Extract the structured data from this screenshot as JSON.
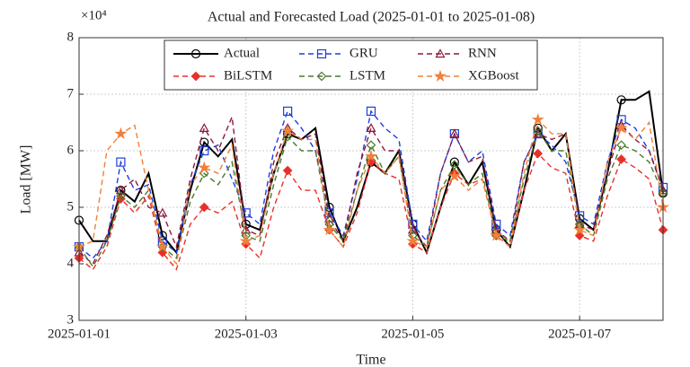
{
  "chart_data": {
    "type": "line",
    "title": "Actual and Forecasted Load (2025-01-01 to 2025-01-08)",
    "ylabel": "Load [MW]",
    "xlabel": "Time",
    "y_exponent_label": "×10⁴",
    "x": [
      0,
      4,
      8,
      12,
      16,
      20,
      24,
      28,
      32,
      36,
      40,
      44,
      48,
      52,
      56,
      60,
      64,
      68,
      72,
      76,
      80,
      84,
      88,
      92,
      96,
      100,
      104,
      108,
      112,
      116,
      120,
      124,
      128,
      132,
      136,
      140,
      144,
      148,
      152,
      156,
      160,
      164,
      168
    ],
    "xlim": [
      0,
      168
    ],
    "xticks": [
      {
        "value": 0,
        "label": "2025-01-01"
      },
      {
        "value": 48,
        "label": "2025-01-03"
      },
      {
        "value": 96,
        "label": "2025-01-05"
      },
      {
        "value": 144,
        "label": "2025-01-07"
      }
    ],
    "ylim": [
      3,
      8
    ],
    "yticks": [
      3,
      4,
      5,
      6,
      7,
      8
    ],
    "grid": true,
    "legend": "top",
    "series": [
      {
        "name": "Actual",
        "color": "#000000",
        "dash": "solid",
        "marker": "circle",
        "values": [
          4.77,
          4.4,
          4.4,
          5.3,
          5.1,
          5.6,
          4.5,
          4.2,
          5.3,
          6.15,
          5.9,
          6.2,
          4.7,
          4.6,
          5.6,
          6.3,
          6.2,
          6.4,
          5.0,
          4.4,
          5.0,
          5.8,
          5.6,
          6.0,
          4.7,
          4.2,
          5.0,
          5.8,
          5.4,
          5.8,
          4.6,
          4.3,
          5.3,
          6.4,
          6.0,
          6.3,
          4.8,
          4.6,
          5.6,
          6.9,
          6.9,
          7.05,
          5.25
        ]
      },
      {
        "name": "GRU",
        "color": "#1f3fdd",
        "dash": "dashed",
        "marker": "square",
        "values": [
          4.3,
          4.1,
          4.4,
          5.8,
          5.3,
          5.4,
          4.4,
          4.2,
          5.4,
          6.0,
          6.1,
          5.5,
          4.9,
          4.7,
          6.0,
          6.7,
          6.4,
          6.0,
          4.9,
          4.5,
          5.5,
          6.7,
          6.4,
          6.2,
          4.7,
          4.4,
          5.6,
          6.3,
          5.8,
          6.0,
          4.7,
          4.5,
          5.8,
          6.3,
          6.1,
          5.8,
          4.85,
          4.7,
          5.8,
          6.55,
          6.4,
          6.0,
          5.35
        ]
      },
      {
        "name": "RNN",
        "color": "#8b1a3a",
        "dash": "dashed",
        "marker": "triangle",
        "values": [
          4.2,
          4.0,
          4.5,
          5.3,
          5.5,
          5.0,
          4.9,
          4.3,
          5.5,
          6.4,
          6.0,
          6.6,
          4.6,
          4.5,
          5.8,
          6.4,
          6.2,
          6.3,
          4.8,
          4.4,
          5.6,
          6.4,
          6.0,
          6.0,
          4.6,
          4.3,
          5.6,
          6.3,
          5.8,
          5.9,
          4.6,
          4.4,
          5.8,
          6.3,
          6.2,
          6.3,
          4.7,
          4.6,
          5.6,
          6.45,
          6.2,
          6.0,
          5.3
        ]
      },
      {
        "name": "BiLSTM",
        "color": "#e8302a",
        "dash": "dashed",
        "marker": "diamond-filled",
        "values": [
          4.1,
          3.9,
          4.3,
          5.15,
          4.9,
          5.2,
          4.2,
          3.9,
          4.7,
          5.0,
          4.9,
          5.1,
          4.35,
          4.1,
          5.0,
          5.65,
          5.3,
          5.3,
          4.6,
          4.3,
          4.9,
          5.8,
          5.6,
          5.5,
          4.35,
          4.2,
          5.0,
          5.6,
          5.4,
          5.5,
          4.5,
          4.3,
          5.3,
          5.95,
          5.7,
          5.6,
          4.5,
          4.4,
          5.2,
          5.85,
          5.7,
          5.5,
          4.6
        ]
      },
      {
        "name": "LSTM",
        "color": "#4a7a2a",
        "dash": "dashed",
        "marker": "diamond",
        "values": [
          4.3,
          3.95,
          4.4,
          5.2,
          5.0,
          5.3,
          4.3,
          4.1,
          5.1,
          5.6,
          5.4,
          5.8,
          4.5,
          4.4,
          5.4,
          6.25,
          6.0,
          6.0,
          4.7,
          4.4,
          5.3,
          6.1,
          5.6,
          5.9,
          4.5,
          4.3,
          5.3,
          5.75,
          5.4,
          5.6,
          4.5,
          4.4,
          5.5,
          6.35,
          6.0,
          6.0,
          4.7,
          4.5,
          5.5,
          6.1,
          6.0,
          5.8,
          5.25
        ]
      },
      {
        "name": "XGBoost",
        "color": "#f0803a",
        "dash": "dashed",
        "marker": "star",
        "values": [
          4.3,
          4.4,
          6.0,
          6.3,
          6.45,
          5.3,
          4.3,
          4.0,
          5.4,
          5.7,
          5.6,
          6.1,
          4.4,
          4.5,
          5.6,
          6.35,
          6.2,
          6.2,
          4.6,
          4.3,
          5.3,
          5.9,
          5.6,
          5.9,
          4.4,
          4.3,
          5.3,
          5.55,
          5.3,
          5.5,
          4.5,
          4.3,
          5.6,
          6.55,
          6.3,
          6.3,
          4.6,
          4.5,
          5.8,
          6.4,
          6.2,
          6.5,
          5.0
        ]
      }
    ]
  }
}
